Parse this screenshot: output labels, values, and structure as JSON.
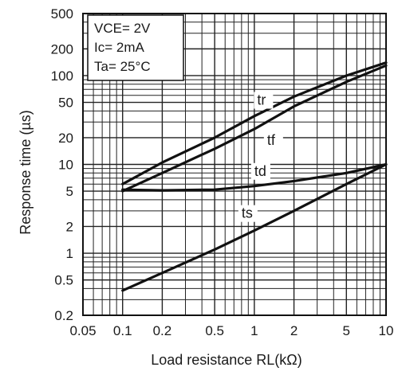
{
  "chart_data": {
    "type": "line",
    "title": "",
    "xlabel": "Load resistance RL(kΩ)",
    "ylabel": "Response time (µs)",
    "x_scale": "log",
    "y_scale": "log",
    "xlim": [
      0.05,
      10
    ],
    "ylim": [
      0.2,
      500
    ],
    "x_ticks": [
      0.05,
      0.1,
      0.2,
      0.5,
      1,
      2,
      5,
      10
    ],
    "x_tick_labels": [
      "0.05",
      "0.1",
      "0.2",
      "0.5",
      "1",
      "2",
      "5",
      "10"
    ],
    "y_ticks": [
      0.2,
      0.5,
      1,
      2,
      5,
      10,
      20,
      50,
      100,
      200,
      500
    ],
    "y_tick_labels": [
      "0.2",
      "0.5",
      "1",
      "2",
      "5",
      "10",
      "20",
      "50",
      "100",
      "200",
      "500"
    ],
    "grid": true,
    "conditions": [
      "VCE= 2V",
      "Ic= 2mA",
      "Ta= 25°C"
    ],
    "series": [
      {
        "name": "tr",
        "x": [
          0.1,
          0.2,
          0.5,
          1,
          2,
          5,
          10
        ],
        "y": [
          6,
          10.5,
          20,
          35,
          58,
          100,
          140
        ]
      },
      {
        "name": "tf",
        "x": [
          0.1,
          0.2,
          0.5,
          1,
          2,
          5,
          10
        ],
        "y": [
          5,
          8,
          15,
          25,
          45,
          85,
          130
        ]
      },
      {
        "name": "td",
        "x": [
          0.1,
          0.2,
          0.5,
          1,
          2,
          5,
          10
        ],
        "y": [
          5.2,
          5.1,
          5.2,
          5.7,
          6.5,
          8,
          10
        ]
      },
      {
        "name": "ts",
        "x": [
          0.1,
          0.2,
          0.5,
          1,
          2,
          5,
          10
        ],
        "y": [
          0.38,
          0.6,
          1.1,
          1.8,
          3,
          6,
          10
        ]
      }
    ]
  }
}
